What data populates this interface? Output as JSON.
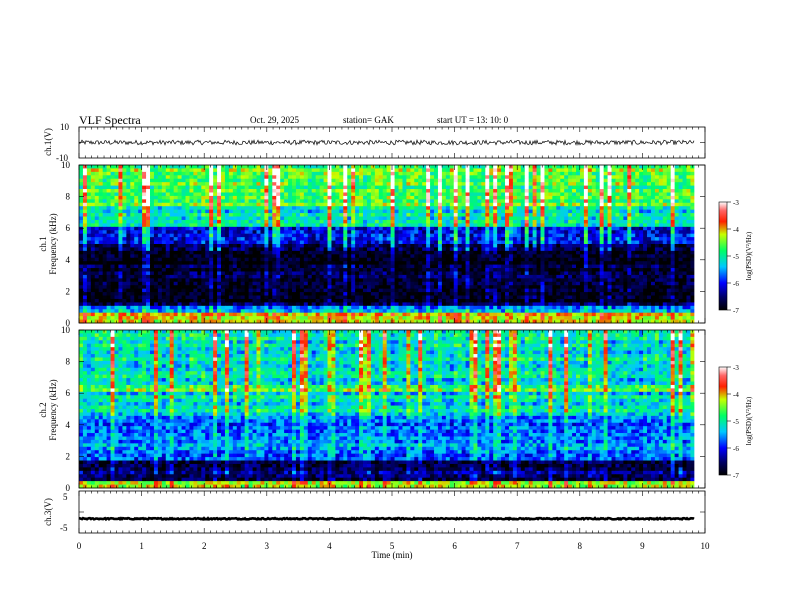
{
  "header": {
    "title": "VLF  Spectra",
    "date": "Oct. 29, 2025",
    "station": "station= GAK",
    "start": "start  UT  =   13: 10: 0"
  },
  "chart_data": {
    "type": "heatmap",
    "x_axis": {
      "label": "Time  (min)",
      "range": [
        0,
        10
      ],
      "ticks": [
        "0",
        "1",
        "2",
        "3",
        "4",
        "5",
        "6",
        "7",
        "8",
        "9",
        "10"
      ],
      "data_end": 9.83
    },
    "panels": [
      {
        "id": "ch1-waveform",
        "kind": "line",
        "ylabel": "ch.1(V)",
        "ylim": [
          -10,
          10
        ],
        "yticks": [
          "10",
          "-10"
        ],
        "baseline": 0,
        "amplitude": 1.5
      },
      {
        "id": "ch1-spectrogram",
        "kind": "heatmap",
        "ylabel_line1": "ch.1",
        "ylabel_line2": "Frequency  (kHz)",
        "ylim": [
          0,
          10
        ],
        "yticks": [
          "0",
          "2",
          "4",
          "6",
          "8",
          "10"
        ],
        "bands": [
          {
            "from": 0.0,
            "to": 0.6,
            "level": -4.2
          },
          {
            "from": 0.6,
            "to": 1.0,
            "level": -5.6
          },
          {
            "from": 1.0,
            "to": 5.0,
            "level": -6.8
          },
          {
            "from": 5.0,
            "to": 6.0,
            "level": -6.0
          },
          {
            "from": 6.0,
            "to": 7.5,
            "level": -5.2
          },
          {
            "from": 7.5,
            "to": 10.0,
            "level": -4.6
          }
        ],
        "colorbar": {
          "label": "log(PSD)(V²/Hz)",
          "range": [
            -7,
            -3
          ],
          "ticks": [
            "-3",
            "-4",
            "-5",
            "-6",
            "-7"
          ]
        }
      },
      {
        "id": "ch2-spectrogram",
        "kind": "heatmap",
        "ylabel_line1": "ch.2",
        "ylabel_line2": "Frequency  (kHz)",
        "ylim": [
          0,
          10
        ],
        "yticks": [
          "0",
          "2",
          "4",
          "6",
          "8",
          "10"
        ],
        "bands": [
          {
            "from": 0.0,
            "to": 0.4,
            "level": -4.4
          },
          {
            "from": 0.4,
            "to": 1.8,
            "level": -6.6
          },
          {
            "from": 1.8,
            "to": 4.5,
            "level": -5.7
          },
          {
            "from": 4.5,
            "to": 6.0,
            "level": -5.2
          },
          {
            "from": 6.0,
            "to": 6.6,
            "level": -4.6
          },
          {
            "from": 6.6,
            "to": 10.0,
            "level": -5.1
          }
        ],
        "colorbar": {
          "label": "log(PSD)(V²/Hz)",
          "range": [
            -7,
            -3
          ],
          "ticks": [
            "-3",
            "-4",
            "-5",
            "-6",
            "-7"
          ]
        }
      },
      {
        "id": "ch3-waveform",
        "kind": "line",
        "ylabel": "ch.3(V)",
        "ylim": [
          -5,
          5
        ],
        "yticks": [
          "5",
          "-5"
        ],
        "baseline": -1.6,
        "amplitude": 0.15
      }
    ]
  }
}
